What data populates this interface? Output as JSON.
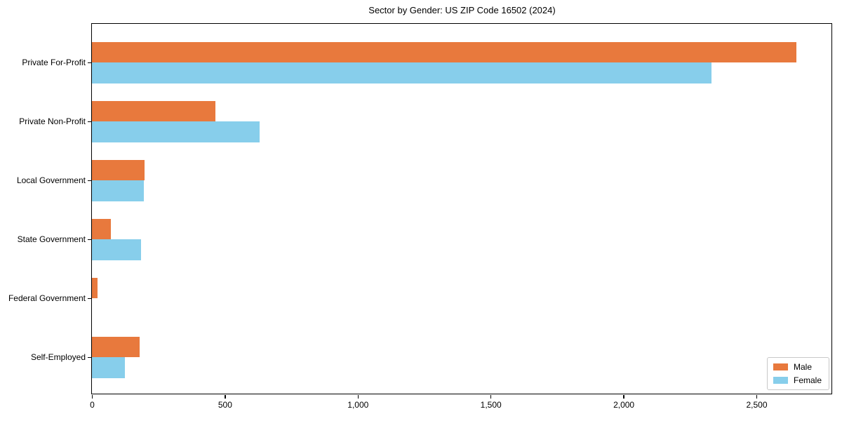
{
  "chart_data": {
    "type": "bar",
    "orientation": "horizontal",
    "title": "Sector by Gender: US ZIP Code 16502 (2024)",
    "categories": [
      "Private For-Profit",
      "Private Non-Profit",
      "Local Government",
      "State Government",
      "Federal Government",
      "Self-Employed"
    ],
    "series": [
      {
        "name": "Male",
        "color": "#E8793D",
        "values": [
          2650,
          465,
          198,
          70,
          20,
          180
        ]
      },
      {
        "name": "Female",
        "color": "#87CEEB",
        "values": [
          2330,
          630,
          195,
          185,
          0,
          125
        ]
      }
    ],
    "xlabel": "",
    "ylabel": "",
    "xlim": [
      0,
      2782.5
    ],
    "xticks": {
      "values": [
        0,
        500,
        1000,
        1500,
        2000,
        2500
      ],
      "labels": [
        "0",
        "500",
        "1,000",
        "1,500",
        "2,000",
        "2,500"
      ]
    },
    "legend": {
      "position": "lower right",
      "entries": [
        "Male",
        "Female"
      ]
    },
    "grid": false,
    "axis_color": "#000000",
    "background_color": "#ffffff"
  }
}
